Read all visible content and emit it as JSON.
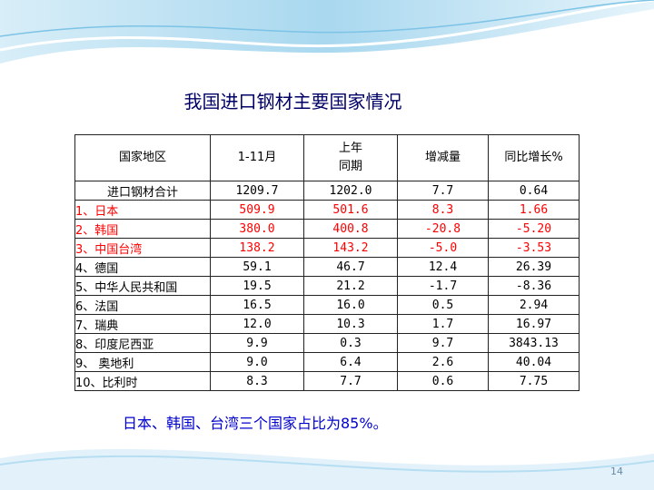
{
  "title": "我国进口钢材主要国家情况",
  "table": {
    "headers": [
      "国家地区",
      "1-11月",
      "上年\n同期",
      "增减量",
      "同比增长%"
    ],
    "rows": [
      {
        "name": "进口钢材合计",
        "cur": "1209.7",
        "prev": "1202.0",
        "diff": "7.7",
        "pct": "0.64",
        "highlight": false
      },
      {
        "name": "1、日本",
        "cur": "509.9",
        "prev": "501.6",
        "diff": "8.3",
        "pct": "1.66",
        "highlight": true
      },
      {
        "name": "2、韩国",
        "cur": "380.0",
        "prev": "400.8",
        "diff": "-20.8",
        "pct": "-5.20",
        "highlight": true
      },
      {
        "name": "3、中国台湾",
        "cur": "138.2",
        "prev": "143.2",
        "diff": "-5.0",
        "pct": "-3.53",
        "highlight": true
      },
      {
        "name": "4、德国",
        "cur": "59.1",
        "prev": "46.7",
        "diff": "12.4",
        "pct": "26.39",
        "highlight": false
      },
      {
        "name": "5、中华人民共和国",
        "cur": "19.5",
        "prev": "21.2",
        "diff": "-1.7",
        "pct": "-8.36",
        "highlight": false
      },
      {
        "name": "6、法国",
        "cur": "16.5",
        "prev": "16.0",
        "diff": "0.5",
        "pct": "2.94",
        "highlight": false
      },
      {
        "name": "7、瑞典",
        "cur": "12.0",
        "prev": "10.3",
        "diff": "1.7",
        "pct": "16.97",
        "highlight": false
      },
      {
        "name": "8、印度尼西亚",
        "cur": "9.9",
        "prev": "0.3",
        "diff": "9.7",
        "pct": "3843.13",
        "highlight": false
      },
      {
        "name": "9、 奥地利",
        "cur": "9.0",
        "prev": "6.4",
        "diff": "2.6",
        "pct": "40.04",
        "highlight": false
      },
      {
        "name": "10、比利时",
        "cur": "8.3",
        "prev": "7.7",
        "diff": "0.6",
        "pct": "7.75",
        "highlight": false
      }
    ]
  },
  "note": "日本、韩国、台湾三个国家占比为85%。",
  "page_number": "14",
  "colors": {
    "title": "#000066",
    "highlight": "#ff0000",
    "note": "#0000cc",
    "wave": "#9fd4ee"
  }
}
